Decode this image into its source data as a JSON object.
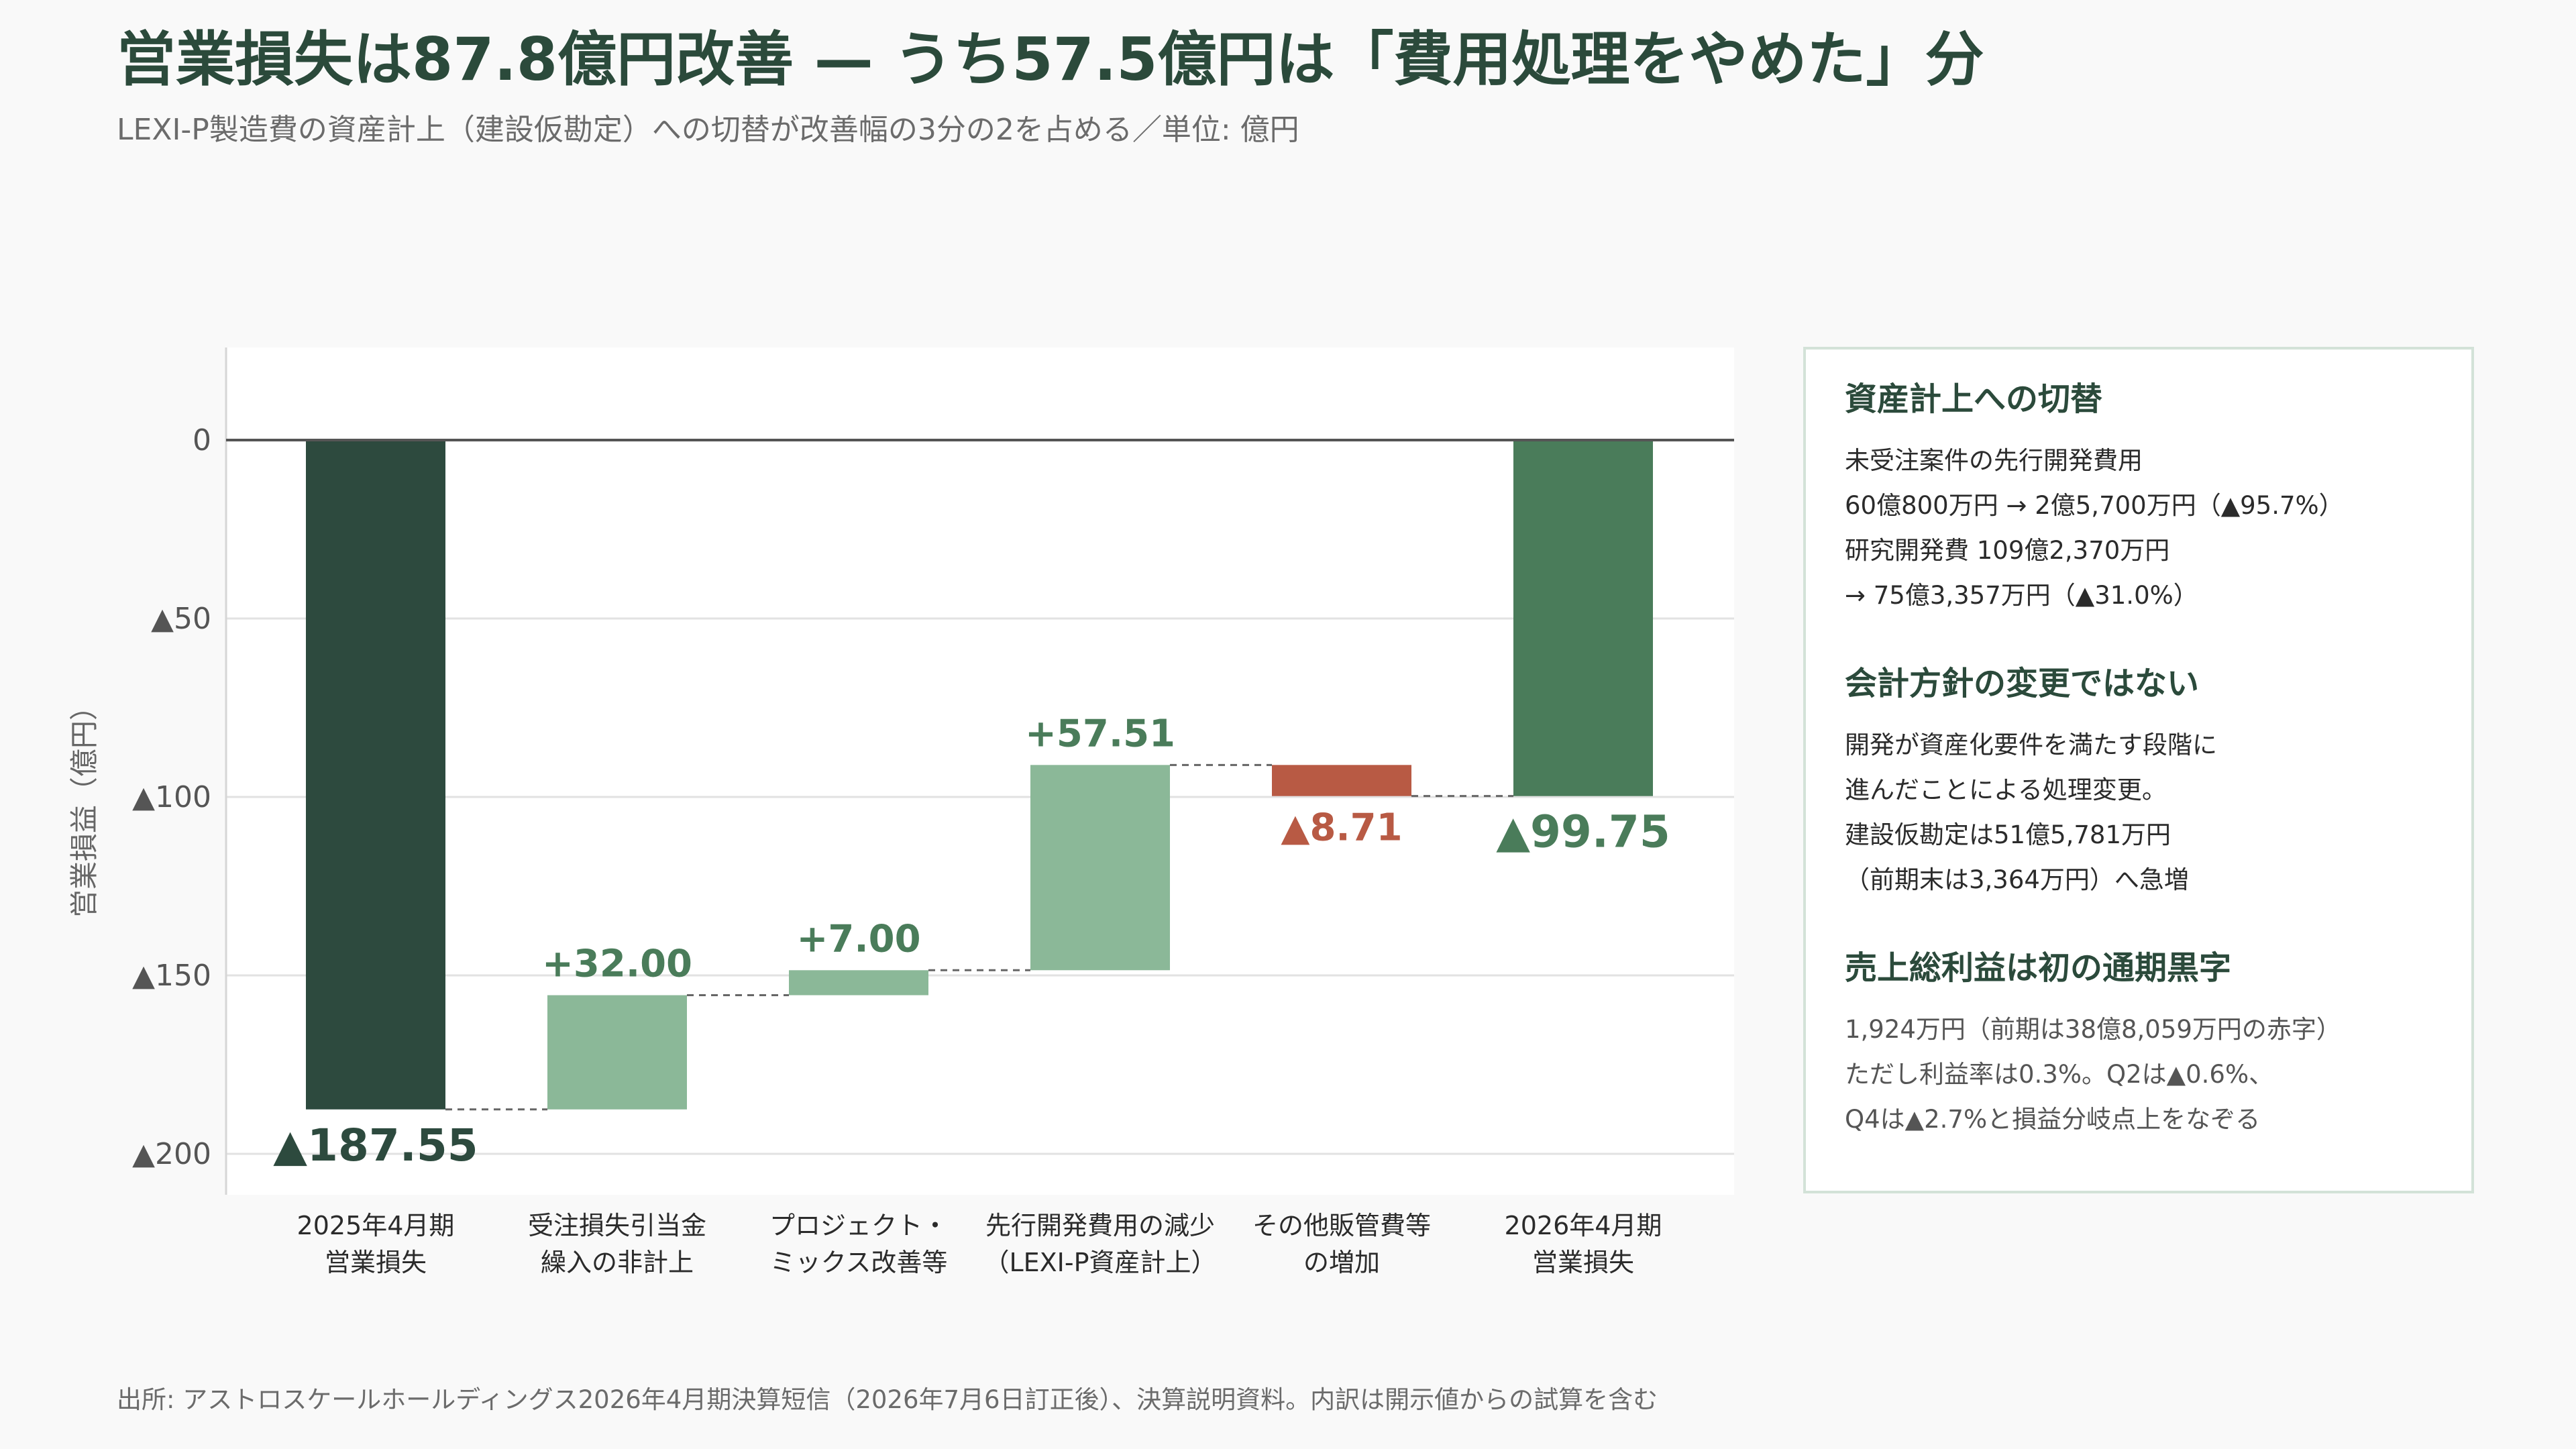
{
  "title": "営業損失は87.8億円改善 — うち57.5億円は「費用処理をやめた」分",
  "subtitle": "LEXI-P製造費の資産計上（建設仮勘定）への切替が改善幅の3分の2を占める／単位: 億円",
  "chart_data": {
    "type": "waterfall",
    "ylabel": "営業損益（億円）",
    "ylim": [
      -210,
      25
    ],
    "yticks": [
      {
        "value": 0,
        "label": "0"
      },
      {
        "value": -50,
        "label": "▲50"
      },
      {
        "value": -100,
        "label": "▲100"
      },
      {
        "value": -150,
        "label": "▲150"
      },
      {
        "value": -200,
        "label": "▲200"
      }
    ],
    "grid": true,
    "steps": [
      {
        "category": [
          "2025年4月期",
          "営業損失"
        ],
        "kind": "total",
        "value": -187.55,
        "label": "▲187.55"
      },
      {
        "category": [
          "受注損失引当金",
          "繰入の非計上"
        ],
        "kind": "delta",
        "value": 32.0,
        "label": "+32.00"
      },
      {
        "category": [
          "プロジェクト・",
          "ミックス改善等"
        ],
        "kind": "delta",
        "value": 7.0,
        "label": "+7.00"
      },
      {
        "category": [
          "先行開発費用の減少",
          "（LEXI-P資産計上）"
        ],
        "kind": "delta",
        "value": 57.51,
        "label": "+57.51"
      },
      {
        "category": [
          "その他販管費等",
          "の増加"
        ],
        "kind": "delta",
        "value": -8.71,
        "label": "▲8.71"
      },
      {
        "category": [
          "2026年4月期",
          "営業損失"
        ],
        "kind": "total",
        "value": -99.75,
        "label": "▲99.75"
      }
    ]
  },
  "colors": {
    "total_start": "#2d4a3e",
    "total_end": "#4a7c5a",
    "increase": "#8bb898",
    "decrease": "#b85a44",
    "increase_label": "#4a7c5a",
    "decrease_label": "#b85a44",
    "total_label": "#2d4a3e",
    "end_label": "#4a7c5a"
  },
  "panel": {
    "sections": [
      {
        "heading": "資産計上への切替",
        "lines": [
          "未受注案件の先行開発費用",
          "60億800万円 → 2億5,700万円（▲95.7%）",
          "研究開発費 109億2,370万円",
          "→ 75億3,357万円（▲31.0%）"
        ]
      },
      {
        "heading": "会計方針の変更ではない",
        "lines": [
          "開発が資産化要件を満たす段階に",
          "進んだことによる処理変更。",
          "建設仮勘定は51億5,781万円",
          "（前期末は3,364万円）へ急増"
        ]
      },
      {
        "heading": "売上総利益は初の通期黒字",
        "lines": [
          "1,924万円（前期は38億8,059万円の赤字）",
          "ただし利益率は0.3%。Q2は▲0.6%、",
          "Q4は▲2.7%と損益分岐点上をなぞる"
        ]
      }
    ]
  },
  "footer": "出所: アストロスケールホールディングス2026年4月期決算短信（2026年7月6日訂正後）、決算説明資料。内訳は開示値からの試算を含む"
}
